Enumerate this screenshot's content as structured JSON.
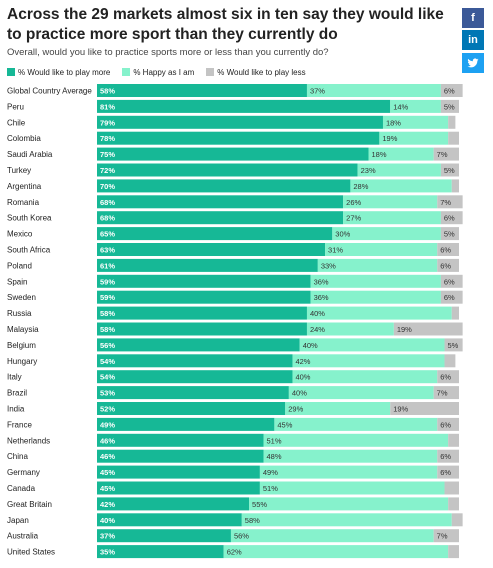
{
  "header": {
    "title": "Across the 29 markets almost six in ten say they would like to practice more sport than they currently do",
    "subtitle": "Overall, would you like to practice sports more or less than you currently do?"
  },
  "share": {
    "facebook_icon": "f",
    "linkedin_icon": "in",
    "twitter_icon": "twitter-bird-icon"
  },
  "colors": {
    "more": "#16b896",
    "happy": "#86f2cc",
    "less": "#c4c4c4"
  },
  "chart_data": {
    "type": "bar",
    "orientation": "horizontal",
    "stacked": true,
    "title": "Across the 29 markets almost six in ten say they would like to practice more sport than they currently do",
    "subtitle": "Overall, would you like to practice sports more or less than you currently do?",
    "legend_position": "top-left",
    "xlim": [
      0,
      100
    ],
    "categories": [
      "Global Country Average",
      "Peru",
      "Chile",
      "Colombia",
      "Saudi Arabia",
      "Turkey",
      "Argentina",
      "Romania",
      "South Korea",
      "Mexico",
      "South Africa",
      "Poland",
      "Spain",
      "Sweden",
      "Russia",
      "Malaysia",
      "Belgium",
      "Hungary",
      "Italy",
      "Brazil",
      "India",
      "France",
      "Netherlands",
      "China",
      "Germany",
      "Canada",
      "Great Britain",
      "Japan",
      "Australia",
      "United States"
    ],
    "series": [
      {
        "name": "% Would like to play more",
        "values": [
          58,
          81,
          79,
          78,
          75,
          72,
          70,
          68,
          68,
          65,
          63,
          61,
          59,
          59,
          58,
          58,
          56,
          54,
          54,
          53,
          52,
          49,
          46,
          46,
          45,
          45,
          42,
          40,
          37,
          35
        ],
        "labels": [
          "58%",
          "81%",
          "79%",
          "78%",
          "75%",
          "72%",
          "70%",
          "68%",
          "68%",
          "65%",
          "63%",
          "61%",
          "59%",
          "59%",
          "58%",
          "58%",
          "56%",
          "54%",
          "54%",
          "53%",
          "52%",
          "49%",
          "46%",
          "46%",
          "45%",
          "45%",
          "42%",
          "40%",
          "37%",
          "35%"
        ]
      },
      {
        "name": "% Happy as I am",
        "values": [
          37,
          14,
          18,
          19,
          18,
          23,
          28,
          26,
          27,
          30,
          31,
          33,
          36,
          36,
          40,
          24,
          40,
          42,
          40,
          40,
          29,
          45,
          51,
          48,
          49,
          51,
          55,
          58,
          56,
          62
        ],
        "labels": [
          "37%",
          "14%",
          "18%",
          "19%",
          "18%",
          "23%",
          "28%",
          "26%",
          "27%",
          "30%",
          "31%",
          "33%",
          "36%",
          "36%",
          "40%",
          "24%",
          "40%",
          "42%",
          "40%",
          "40%",
          "29%",
          "45%",
          "51%",
          "48%",
          "49%",
          "51%",
          "55%",
          "58%",
          "56%",
          "62%"
        ]
      },
      {
        "name": "% Would like to play less",
        "values": [
          6,
          5,
          2,
          3,
          7,
          5,
          2,
          7,
          6,
          5,
          6,
          6,
          6,
          6,
          2,
          19,
          5,
          3,
          6,
          7,
          19,
          6,
          3,
          6,
          6,
          4,
          3,
          3,
          7,
          3
        ],
        "labels": [
          "6%",
          "5%",
          "",
          "",
          "7%",
          "5%",
          "",
          "7%",
          "6%",
          "5%",
          "6%",
          "6%",
          "6%",
          "6%",
          "",
          "19%",
          "5%",
          "",
          "6%",
          "7%",
          "19%",
          "6%",
          "",
          "6%",
          "6%",
          "",
          "",
          "",
          "7%",
          ""
        ]
      }
    ]
  }
}
